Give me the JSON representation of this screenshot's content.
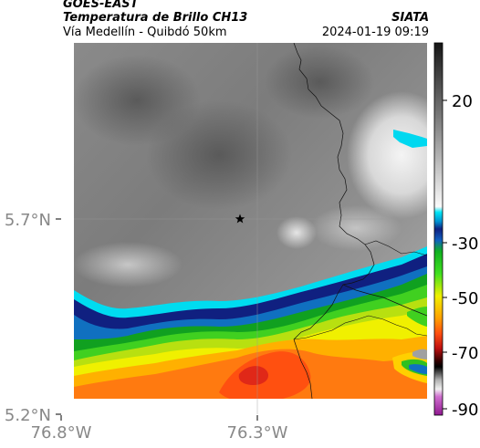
{
  "header": {
    "satellite": "GOES-EAST",
    "product": "Temperatura de Brillo CH13",
    "region": "Vía Medellín - Quibdó 50km",
    "agency": "SIATA",
    "datetime": "2024-01-19 09:19"
  },
  "map": {
    "lon_ticks": [
      "76.8°W",
      "76.3°W"
    ],
    "lat_ticks": [
      "5.7°N",
      "5.2°N"
    ],
    "marker": "star-icon"
  },
  "colorbar": {
    "ticks": [
      "20",
      "-30",
      "-50",
      "-70",
      "-90"
    ],
    "colors": {
      "cold_max": "#1a1a1a",
      "cyan": "#00e5f5",
      "blue": "#1030a0",
      "green": "#20d020",
      "yellow": "#f0f000",
      "orange": "#ff7a10",
      "red": "#d81818",
      "dark_red": "#400000",
      "magenta": "#c040c0"
    }
  }
}
